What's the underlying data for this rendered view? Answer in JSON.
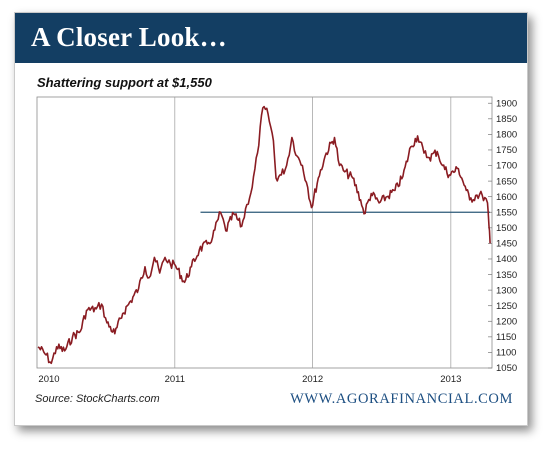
{
  "header": {
    "title": "A Closer Look…"
  },
  "footer": {
    "source": "Source:  StockCharts.com",
    "brand": "WWW.AGORAFINANCIAL.COM"
  },
  "colors": {
    "banner": "#133e63",
    "series": "#8a1c22",
    "support_line": "#2b5a78",
    "brand_text": "#1d4f82"
  },
  "chart_data": {
    "type": "line",
    "title": "Shattering support at $1,550",
    "xlabel": "",
    "ylabel": "",
    "x_ticks": [
      "2010",
      "2011",
      "2012",
      "2013"
    ],
    "y_ticks": [
      1050,
      1100,
      1150,
      1200,
      1250,
      1300,
      1350,
      1400,
      1450,
      1500,
      1550,
      1600,
      1650,
      1700,
      1750,
      1800,
      1850,
      1900
    ],
    "ylim": [
      1050,
      1920
    ],
    "xlim": [
      "2010-01-01",
      "2013-04-20"
    ],
    "y_axis_side": "right",
    "grid": {
      "vertical": true,
      "horizontal": false
    },
    "support_level": 1550,
    "support_start": "2011-03-10",
    "series": [
      {
        "x": [
          "2010-01-04",
          "2010-01-25",
          "2010-02-08",
          "2010-02-22",
          "2010-03-15",
          "2010-04-05",
          "2010-04-26",
          "2010-05-12",
          "2010-06-07",
          "2010-06-21",
          "2010-07-05",
          "2010-07-26",
          "2010-08-16",
          "2010-09-06",
          "2010-09-27",
          "2010-10-14",
          "2010-10-25",
          "2010-11-08",
          "2010-11-22",
          "2010-12-06",
          "2010-12-20",
          "2011-01-03",
          "2011-01-27",
          "2011-02-14",
          "2011-03-07",
          "2011-03-28",
          "2011-04-11",
          "2011-05-02",
          "2011-05-16",
          "2011-06-06",
          "2011-06-27",
          "2011-07-11",
          "2011-07-25",
          "2011-08-08",
          "2011-08-22",
          "2011-09-05",
          "2011-09-19",
          "2011-09-26",
          "2011-10-10",
          "2011-10-24",
          "2011-11-07",
          "2011-11-21",
          "2011-12-05",
          "2011-12-19",
          "2011-12-29",
          "2012-01-16",
          "2012-02-06",
          "2012-02-28",
          "2012-03-12",
          "2012-03-26",
          "2012-04-16",
          "2012-05-07",
          "2012-05-16",
          "2012-06-04",
          "2012-06-25",
          "2012-07-16",
          "2012-08-06",
          "2012-08-27",
          "2012-09-17",
          "2012-10-05",
          "2012-10-22",
          "2012-11-05",
          "2012-11-26",
          "2012-12-10",
          "2012-12-28",
          "2013-01-21",
          "2013-02-11",
          "2013-02-20",
          "2013-03-11",
          "2013-03-25",
          "2013-04-08",
          "2013-04-12",
          "2013-04-15"
        ],
        "values": [
          1118,
          1092,
          1065,
          1118,
          1105,
          1150,
          1168,
          1235,
          1240,
          1255,
          1195,
          1160,
          1225,
          1265,
          1305,
          1375,
          1340,
          1405,
          1355,
          1405,
          1385,
          1378,
          1325,
          1375,
          1430,
          1448,
          1470,
          1550,
          1490,
          1545,
          1505,
          1575,
          1630,
          1740,
          1885,
          1865,
          1780,
          1660,
          1670,
          1700,
          1790,
          1730,
          1700,
          1630,
          1565,
          1660,
          1740,
          1790,
          1700,
          1680,
          1660,
          1590,
          1545,
          1610,
          1580,
          1600,
          1620,
          1665,
          1760,
          1795,
          1740,
          1725,
          1745,
          1700,
          1670,
          1690,
          1620,
          1590,
          1605,
          1605,
          1580,
          1505,
          1450
        ]
      }
    ]
  }
}
